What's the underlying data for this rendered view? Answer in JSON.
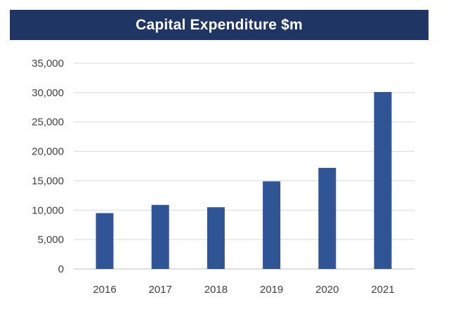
{
  "chart_data": {
    "type": "bar",
    "title": "Capital Expenditure $m",
    "xlabel": "",
    "ylabel": "",
    "categories": [
      "2016",
      "2017",
      "2018",
      "2019",
      "2020",
      "2021"
    ],
    "values": [
      9500,
      10900,
      10500,
      14900,
      17200,
      30100
    ],
    "ylim": [
      0,
      35000
    ],
    "yticks": [
      0,
      5000,
      10000,
      15000,
      20000,
      25000,
      30000,
      35000
    ],
    "ytick_labels": [
      "0",
      "5,000",
      "10,000",
      "15,000",
      "20,000",
      "25,000",
      "30,000",
      "35,000"
    ],
    "grid": true,
    "legend": "none",
    "colors": {
      "bar": "#2f5597",
      "title_bg": "#1f3563",
      "title_text": "#ffffff",
      "grid": "#d9d9d9",
      "axis": "#bfbfbf"
    }
  }
}
